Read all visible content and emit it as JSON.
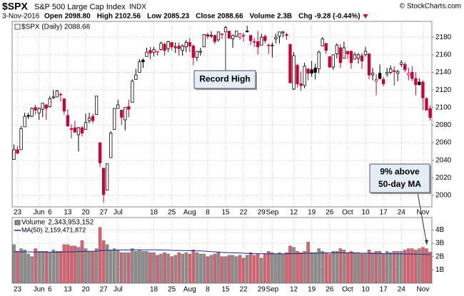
{
  "header": {
    "symbol": "$SPX",
    "name": "S&P 500 Large Cap Index",
    "exchange": "INDX",
    "copyright": "© StockCharts.com",
    "date": "3-Nov-2016",
    "quote": [
      [
        "Open",
        "2098.80"
      ],
      [
        "High",
        "2102.56"
      ],
      [
        "Low",
        "2085.23"
      ],
      [
        "Close",
        "2088.66"
      ],
      [
        "Volume",
        "2.3B"
      ],
      [
        "Chg",
        "-9.28 (-0.44%)"
      ]
    ]
  },
  "chart_data": {
    "type": "candlestick",
    "legend": "$SPX (Daily) 2088.66",
    "grid": true,
    "up_color": "#000000",
    "down_color": "#cc0033",
    "categories": [
      null,
      "23",
      null,
      null,
      null,
      null,
      null,
      "Jun",
      null,
      null,
      "6",
      null,
      null,
      null,
      null,
      "13",
      null,
      null,
      null,
      null,
      "20",
      null,
      null,
      null,
      null,
      "27",
      null,
      null,
      null,
      "Jul",
      null,
      null,
      null,
      null,
      null,
      null,
      null,
      null,
      null,
      "18",
      null,
      null,
      null,
      null,
      "25",
      null,
      null,
      null,
      null,
      "Aug",
      null,
      null,
      null,
      null,
      "8",
      null,
      null,
      null,
      null,
      "15",
      null,
      null,
      null,
      null,
      "22",
      null,
      null,
      null,
      null,
      "29",
      null,
      null,
      "Sep",
      null,
      null,
      null,
      null,
      null,
      "12",
      null,
      null,
      null,
      null,
      "19",
      null,
      null,
      null,
      null,
      "26",
      null,
      null,
      null,
      null,
      "Oct",
      null,
      null,
      null,
      null,
      "10",
      null,
      null,
      null,
      null,
      "17",
      null,
      null,
      null,
      null,
      "24",
      null,
      null,
      null,
      null,
      null,
      "Nov",
      null,
      null
    ],
    "open": [
      2041,
      2052,
      2052,
      2078,
      2091,
      2090,
      2100,
      2094,
      2098,
      2103,
      2101,
      2111,
      2112,
      2115,
      2110,
      2091,
      2076,
      2077,
      2069,
      2077,
      2075,
      2085,
      2090,
      2092,
      2060,
      2031,
      2006,
      2043,
      2075,
      2099,
      2097,
      2086,
      2101,
      2106,
      2132,
      2140,
      2154,
      2158,
      2165,
      2163,
      2163,
      2166,
      2172,
      2167,
      2174,
      2168,
      2170,
      2165,
      2169,
      2174,
      2170,
      2157,
      2163,
      2169,
      2183,
      2182,
      2182,
      2177,
      2183,
      2186,
      2187,
      2178,
      2181,
      2180,
      2182,
      2187,
      2182,
      2175,
      2175,
      2171,
      2181,
      2171,
      2171,
      2178,
      2181,
      2185,
      2183,
      2172,
      2121,
      2148,
      2127,
      2125,
      2144,
      2143,
      2145,
      2144,
      2170,
      2173,
      2158,
      2146,
      2161,
      2168,
      2156,
      2164,
      2164,
      2155,
      2156,
      2159,
      2160,
      2161,
      2137,
      2130,
      2139,
      2132,
      2138,
      2140,
      2142,
      2139,
      2149,
      2149,
      2137,
      2140,
      2133,
      2129,
      2129,
      2110,
      2098.8
    ],
    "high": [
      2058,
      2056,
      2079,
      2094,
      2094,
      2100,
      2103,
      2100,
      2105,
      2104,
      2113,
      2120,
      2120,
      2117,
      2110,
      2098,
      2081,
      2085,
      2078,
      2079,
      2093,
      2094,
      2093,
      2113,
      2060,
      2031,
      2036,
      2073,
      2099,
      2109,
      2097,
      2100,
      2109,
      2132,
      2144,
      2155,
      2156,
      2168,
      2169,
      2169,
      2164,
      2175,
      2174,
      2176,
      2174,
      2174,
      2174,
      2172,
      2177,
      2179,
      2172,
      2164,
      2168,
      2183,
      2185,
      2187,
      2183,
      2186,
      2184,
      2193,
      2187,
      2183,
      2187,
      2185,
      2185,
      2193,
      2183,
      2179,
      2187,
      2184,
      2183,
      2173,
      2174,
      2184,
      2186,
      2187,
      2185,
      2172,
      2163,
      2150,
      2141,
      2151,
      2144,
      2153,
      2150,
      2165,
      2180,
      2173,
      2158,
      2160,
      2173,
      2172,
      2175,
      2164,
      2165,
      2163,
      2162,
      2162,
      2169,
      2162,
      2145,
      2138,
      2149,
      2135,
      2145,
      2148,
      2147,
      2143,
      2154,
      2152,
      2145,
      2147,
      2140,
      2133,
      2131,
      2112,
      2102.56
    ],
    "low": [
      2041,
      2047,
      2052,
      2078,
      2087,
      2089,
      2092,
      2086,
      2089,
      2086,
      2100,
      2110,
      2112,
      2107,
      2092,
      2078,
      2065,
      2071,
      2050,
      2067,
      2075,
      2082,
      2082,
      2092,
      2032,
      1992,
      2006,
      2043,
      2075,
      2099,
      2080,
      2074,
      2089,
      2106,
      2132,
      2140,
      2145,
      2158,
      2155,
      2158,
      2159,
      2165,
      2159,
      2163,
      2165,
      2162,
      2159,
      2159,
      2163,
      2163,
      2148,
      2153,
      2159,
      2169,
      2178,
      2179,
      2172,
      2175,
      2178,
      2186,
      2178,
      2168,
      2180,
      2177,
      2175,
      2186,
      2171,
      2169,
      2160,
      2171,
      2173,
      2161,
      2157,
      2173,
      2173,
      2180,
      2177,
      2128,
      2120,
      2123,
      2119,
      2122,
      2131,
      2135,
      2132,
      2139,
      2170,
      2161,
      2145,
      2143,
      2156,
      2145,
      2156,
      2155,
      2144,
      2155,
      2150,
      2144,
      2158,
      2132,
      2131,
      2114,
      2132,
      2124,
      2135,
      2138,
      2125,
      2130,
      2146,
      2140,
      2131,
      2130,
      2114,
      2125,
      2097,
      2097,
      2085.23
    ],
    "close": [
      2052,
      2048,
      2076,
      2090,
      2090,
      2099,
      2097,
      2099,
      2105,
      2099,
      2110,
      2112,
      2119,
      2115,
      2096,
      2079,
      2075,
      2072,
      2077,
      2071,
      2083,
      2088,
      2085,
      2113,
      2037,
      2001,
      2036,
      2071,
      2099,
      2103,
      2089,
      2100,
      2098,
      2130,
      2137,
      2152,
      2152,
      2163,
      2162,
      2166,
      2164,
      2173,
      2165,
      2175,
      2169,
      2169,
      2167,
      2170,
      2174,
      2170,
      2157,
      2164,
      2164,
      2183,
      2181,
      2182,
      2175,
      2186,
      2184,
      2191,
      2179,
      2182,
      2187,
      2184,
      2182,
      2186,
      2176,
      2175,
      2169,
      2180,
      2176,
      2171,
      2171,
      2180,
      2186,
      2186,
      2182,
      2128,
      2159,
      2127,
      2125,
      2147,
      2139,
      2139,
      2140,
      2163,
      2178,
      2165,
      2146,
      2160,
      2171,
      2151,
      2168,
      2161,
      2151,
      2160,
      2160,
      2153,
      2164,
      2137,
      2139,
      2132,
      2133,
      2127,
      2140,
      2144,
      2141,
      2141,
      2151,
      2143,
      2139,
      2133,
      2126,
      2126,
      2111,
      2097,
      2088.66
    ],
    "ylim": [
      1987,
      2198
    ],
    "yticks": [
      2000,
      2020,
      2040,
      2060,
      2080,
      2100,
      2120,
      2140,
      2160,
      2180
    ],
    "volume": {
      "name": "Volume",
      "legend_value": "2,343,953,152",
      "up_color": "#8c8c8c",
      "down_color": "#d9606f",
      "values": [
        2.9,
        2.4,
        2.6,
        2.5,
        2.2,
        2.0,
        2.6,
        2.4,
        2.4,
        2.4,
        2.3,
        2.5,
        2.4,
        2.4,
        2.9,
        2.9,
        2.8,
        2.8,
        2.7,
        3.2,
        2.6,
        2.4,
        2.4,
        2.6,
        4.2,
        3.2,
        2.9,
        2.5,
        2.6,
        2.5,
        2.3,
        2.3,
        2.3,
        2.6,
        2.4,
        2.5,
        2.4,
        2.4,
        2.3,
        2.3,
        2.1,
        2.2,
        2.3,
        2.2,
        2.0,
        2.1,
        2.3,
        2.2,
        2.3,
        2.2,
        2.5,
        2.3,
        2.2,
        2.2,
        2.0,
        2.1,
        2.2,
        2.3,
        2.0,
        2.0,
        2.1,
        2.1,
        2.0,
        2.1,
        1.9,
        2.1,
        2.3,
        2.1,
        2.2,
        1.9,
        2.2,
        2.4,
        2.3,
        2.2,
        2.3,
        2.2,
        2.3,
        2.8,
        2.7,
        2.4,
        2.3,
        2.4,
        3.1,
        2.3,
        2.3,
        2.6,
        2.4,
        2.3,
        2.2,
        2.4,
        2.4,
        2.6,
        2.5,
        2.3,
        2.4,
        2.3,
        2.3,
        2.2,
        2.2,
        2.5,
        2.3,
        2.4,
        2.4,
        2.2,
        2.4,
        2.3,
        2.4,
        2.4,
        2.4,
        2.5,
        2.6,
        2.6,
        2.5,
        2.6,
        2.7,
        2.6,
        2.34
      ],
      "ylim": [
        0,
        4.93
      ],
      "yticks": [
        {
          "value": 1,
          "label": "1B"
        },
        {
          "value": 2,
          "label": "2B"
        },
        {
          "value": 3,
          "label": "3B"
        },
        {
          "value": 4,
          "label": "4B"
        }
      ],
      "ma": {
        "name": "MA(50)",
        "legend_value": "2,159,471,872",
        "color": "#1f2a80",
        "values": [
          2.36,
          2.36,
          2.35,
          2.35,
          2.35,
          2.34,
          2.34,
          2.34,
          2.34,
          2.33,
          2.33,
          2.33,
          2.33,
          2.34,
          2.34,
          2.35,
          2.35,
          2.36,
          2.37,
          2.38,
          2.39,
          2.4,
          2.4,
          2.41,
          2.44,
          2.46,
          2.47,
          2.48,
          2.48,
          2.49,
          2.49,
          2.49,
          2.49,
          2.5,
          2.5,
          2.5,
          2.5,
          2.5,
          2.5,
          2.5,
          2.49,
          2.49,
          2.49,
          2.48,
          2.47,
          2.46,
          2.46,
          2.45,
          2.45,
          2.44,
          2.44,
          2.43,
          2.42,
          2.41,
          2.39,
          2.37,
          2.35,
          2.33,
          2.31,
          2.3,
          2.29,
          2.28,
          2.27,
          2.26,
          2.25,
          2.24,
          2.23,
          2.22,
          2.22,
          2.21,
          2.21,
          2.21,
          2.21,
          2.2,
          2.2,
          2.2,
          2.21,
          2.22,
          2.22,
          2.23,
          2.23,
          2.24,
          2.25,
          2.25,
          2.25,
          2.26,
          2.26,
          2.27,
          2.27,
          2.28,
          2.28,
          2.28,
          2.28,
          2.27,
          2.27,
          2.26,
          2.26,
          2.25,
          2.25,
          2.24,
          2.24,
          2.23,
          2.23,
          2.22,
          2.22,
          2.21,
          2.21,
          2.2,
          2.2,
          2.19,
          2.19,
          2.18,
          2.18,
          2.17,
          2.17,
          2.16,
          2.16
        ]
      }
    },
    "annotations": [
      {
        "lines": [
          "Record High"
        ]
      },
      {
        "lines": [
          "9% above",
          "50-day MA"
        ]
      }
    ]
  }
}
